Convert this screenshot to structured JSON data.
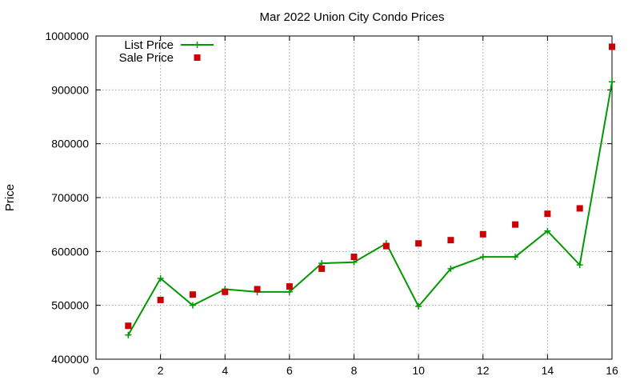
{
  "chart_data": {
    "type": "line",
    "title": "Mar 2022 Union City Condo Prices",
    "xlabel": "",
    "ylabel": "Price",
    "xlim": [
      0,
      16
    ],
    "ylim": [
      400000,
      1000000
    ],
    "x_ticks": [
      0,
      2,
      4,
      6,
      8,
      10,
      12,
      14,
      16
    ],
    "y_ticks": [
      400000,
      500000,
      600000,
      700000,
      800000,
      900000,
      1000000
    ],
    "grid": true,
    "legend_position": "top-left",
    "series": [
      {
        "name": "List Price",
        "style": "line-with-plus-markers",
        "color": "#009900",
        "x": [
          1,
          2,
          3,
          4,
          5,
          6,
          7,
          8,
          9,
          10,
          11,
          12,
          13,
          14,
          15,
          16
        ],
        "values": [
          445000,
          550000,
          500000,
          530000,
          525000,
          525000,
          578000,
          580000,
          615000,
          498000,
          568000,
          590000,
          590000,
          638000,
          575000,
          915000
        ]
      },
      {
        "name": "Sale Price",
        "style": "square-markers",
        "color": "#cc0000",
        "x": [
          1,
          2,
          3,
          4,
          5,
          6,
          7,
          8,
          9,
          10,
          11,
          12,
          13,
          14,
          15,
          16
        ],
        "values": [
          462000,
          510000,
          520000,
          525000,
          530000,
          535000,
          568000,
          590000,
          610000,
          615000,
          621000,
          632000,
          650000,
          670000,
          680000,
          980000
        ]
      }
    ]
  }
}
